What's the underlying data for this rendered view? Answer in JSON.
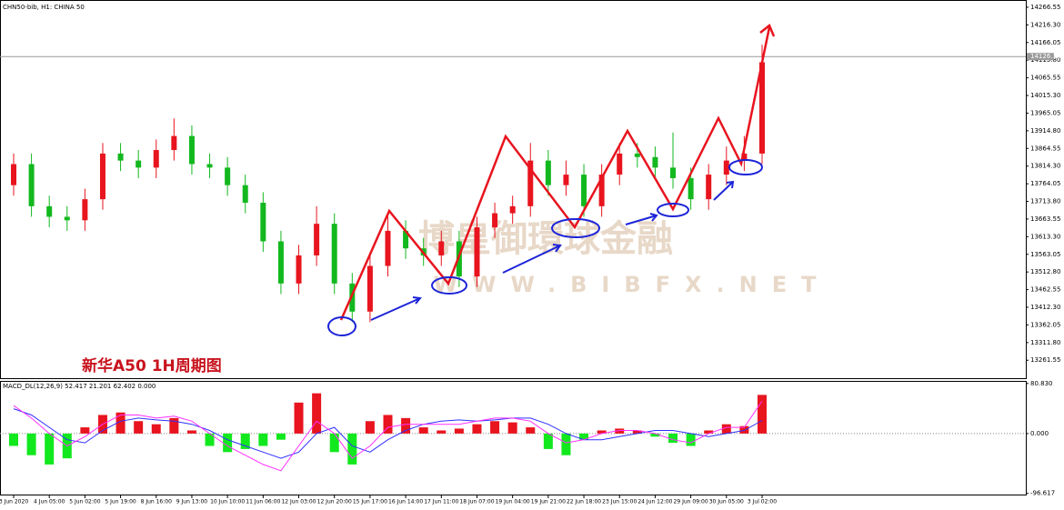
{
  "chart_data": [
    {
      "type": "candlestick",
      "title": "CHN50-bib, H1: CHINA 50",
      "annotation": "新华A50 1H周期图",
      "watermark": [
        "博皇御環球金融",
        "WWW.BIBFX.NET"
      ],
      "up_color": "#e8141e",
      "down_color": "#12b81e",
      "categories": [
        "3 Jun 2020",
        null,
        "4 Jun 05:00",
        null,
        "5 Jun 02:00",
        null,
        "5 Jun 19:00",
        null,
        "8 Jun 16:00",
        null,
        "9 Jun 13:00",
        null,
        "10 Jun 10:00",
        null,
        "11 Jun 06:00",
        null,
        "12 Jun 03:00",
        null,
        "12 Jun 20:00",
        null,
        "15 Jun 17:00",
        null,
        "16 Jun 14:00",
        null,
        "17 Jun 11:00",
        null,
        "18 Jun 07:00",
        null,
        "19 Jun 04:00",
        null,
        "19 Jun 21:00",
        null,
        "22 Jun 18:00",
        null,
        "23 Jun 15:00",
        null,
        "24 Jun 12:00",
        null,
        "29 Jun 09:00",
        null,
        "30 Jun 05:00",
        null,
        "3 Jul 02:00"
      ],
      "open": [
        13760,
        13820,
        13700,
        13670,
        13660,
        13720,
        13850,
        13830,
        13810,
        13860,
        13900,
        13820,
        13810,
        13760,
        13710,
        13600,
        13480,
        13560,
        13650,
        13480,
        13400,
        13530,
        13630,
        13580,
        13560,
        13600,
        13500,
        13640,
        13680,
        13700,
        13830,
        13760,
        13790,
        13700,
        13790,
        13850,
        13840,
        13810,
        13780,
        13720,
        13790,
        13830,
        13850
      ],
      "high": [
        13850,
        13850,
        13730,
        13700,
        13750,
        13880,
        13880,
        13860,
        13890,
        13950,
        13930,
        13850,
        13840,
        13790,
        13740,
        13630,
        13590,
        13700,
        13680,
        13510,
        13560,
        13680,
        13660,
        13610,
        13630,
        13630,
        13670,
        13710,
        13730,
        13880,
        13860,
        13830,
        13820,
        13820,
        13880,
        13880,
        13870,
        13910,
        13810,
        13820,
        13870,
        13900,
        14160
      ],
      "low": [
        13730,
        13670,
        13640,
        13630,
        13630,
        13690,
        13800,
        13780,
        13780,
        13830,
        13790,
        13780,
        13730,
        13680,
        13570,
        13450,
        13450,
        13530,
        13450,
        13370,
        13370,
        13500,
        13550,
        13530,
        13530,
        13470,
        13470,
        13610,
        13650,
        13670,
        13730,
        13730,
        13670,
        13670,
        13760,
        13810,
        13780,
        13750,
        13690,
        13690,
        13760,
        13800,
        13820
      ],
      "close": [
        13820,
        13700,
        13670,
        13660,
        13720,
        13850,
        13830,
        13810,
        13860,
        13900,
        13820,
        13810,
        13760,
        13710,
        13600,
        13480,
        13560,
        13650,
        13480,
        13400,
        13530,
        13630,
        13580,
        13560,
        13600,
        13500,
        13640,
        13680,
        13700,
        13830,
        13760,
        13790,
        13700,
        13790,
        13850,
        13840,
        13810,
        13780,
        13720,
        13790,
        13830,
        13850,
        14110
      ],
      "price_line": {
        "value": 14126.1,
        "label": "14126.10"
      },
      "ylim": [
        13213,
        14282
      ],
      "yticks": [
        14266.55,
        {
          "value": 14216.3,
          "label": "14216.30"
        },
        14166.05,
        {
          "value": 14115.8,
          "label": "14115.80"
        },
        14065.55,
        {
          "value": 14015.3,
          "label": "14015.30"
        },
        13965.05,
        {
          "value": 13914.8,
          "label": "13914.80"
        },
        13864.55,
        {
          "value": 13814.3,
          "label": "13814.30"
        },
        13764.05,
        {
          "value": 13713.8,
          "label": "13713.80"
        },
        13663.55,
        {
          "value": 13613.3,
          "label": "13613.30"
        },
        13563.05,
        {
          "value": 13512.8,
          "label": "13512.80"
        },
        13462.55,
        {
          "value": 13412.3,
          "label": "13412.30"
        },
        13362.05,
        {
          "value": 13311.8,
          "label": "13311.80"
        },
        13261.55
      ]
    },
    {
      "type": "macd",
      "title": "MACD_DL(12,26,9) 52.417 21.201 62.402 0.000",
      "up_color": "#e8141e",
      "down_color": "#12e81e",
      "values": [
        -20,
        -35,
        -50,
        -40,
        10,
        30,
        34,
        20,
        15,
        25,
        5,
        -20,
        -30,
        -25,
        -20,
        -10,
        50,
        65,
        -30,
        -50,
        20,
        30,
        25,
        10,
        5,
        8,
        15,
        20,
        18,
        10,
        -25,
        -35,
        -10,
        5,
        8,
        5,
        -5,
        -15,
        -20,
        5,
        15,
        12,
        62.402
      ],
      "lines": [
        {
          "color": "#3030ff",
          "values": [
            40,
            30,
            10,
            -10,
            -15,
            5,
            20,
            25,
            22,
            20,
            15,
            5,
            -10,
            -20,
            -30,
            -40,
            -30,
            0,
            10,
            -20,
            -30,
            -10,
            5,
            15,
            20,
            22,
            20,
            22,
            25,
            25,
            15,
            0,
            -10,
            -10,
            -5,
            0,
            5,
            5,
            0,
            -5,
            0,
            5,
            21.201
          ]
        },
        {
          "color": "#ff30ff",
          "values": [
            45,
            25,
            0,
            -20,
            -5,
            15,
            30,
            30,
            25,
            28,
            20,
            0,
            -20,
            -35,
            -50,
            -60,
            -20,
            20,
            0,
            -40,
            -20,
            10,
            15,
            15,
            15,
            15,
            20,
            25,
            25,
            20,
            0,
            -15,
            -10,
            0,
            5,
            5,
            0,
            -10,
            -15,
            0,
            10,
            10,
            52.417
          ]
        }
      ],
      "ylim": [
        -100,
        85
      ],
      "yticks": [
        {
          "value": 80.83,
          "label": "80.830"
        },
        {
          "value": 0,
          "label": "0.000"
        },
        -96.617
      ]
    }
  ]
}
